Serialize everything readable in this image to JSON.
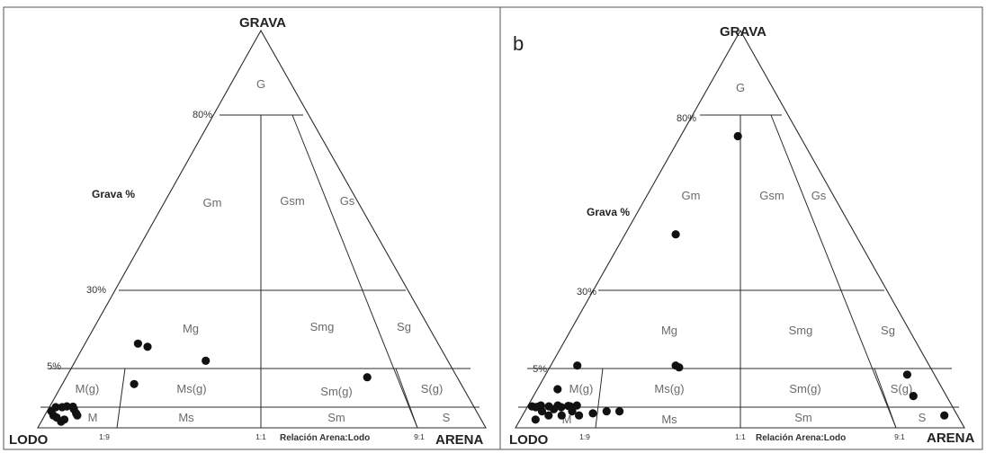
{
  "panels": [
    {
      "letter": "",
      "apex_top": "GRAVA",
      "corner_left": "LODO",
      "corner_right": "ARENA",
      "gravel_axis_label": "Grava %",
      "ratio_axis_label": "Relación Arena:Lodo",
      "gravel_levels": [
        "80%",
        "30%",
        "5%"
      ],
      "ratio_ticks": [
        "1:9",
        "1:1",
        "9:1"
      ],
      "zones": {
        "G": "G",
        "Gm": "Gm",
        "Gsm": "Gsm",
        "Gs": "Gs",
        "Mg": "Mg",
        "Smg": "Smg",
        "Sg": "Sg",
        "Mg_paren": "M(g)",
        "Msg": "Ms(g)",
        "Smg_paren": "Sm(g)",
        "Sg_paren": "S(g)",
        "M": "M",
        "Ms": "Ms",
        "Sm": "Sm",
        "S": "S"
      },
      "points": [
        {
          "gravel": 13,
          "ratio": 0.15
        },
        {
          "gravel": 12,
          "ratio": 0.18
        },
        {
          "gravel": 7.5,
          "ratio": 0.35
        },
        {
          "gravel": 3.2,
          "ratio": 0.18
        },
        {
          "gravel": 4.0,
          "ratio": 0.77
        },
        {
          "gravel": 0.4,
          "ratio": 0.01
        },
        {
          "gravel": 0.3,
          "ratio": 0.02
        },
        {
          "gravel": 0.5,
          "ratio": 0.03
        },
        {
          "gravel": 0.6,
          "ratio": 0.04
        },
        {
          "gravel": 0.2,
          "ratio": 0.05
        },
        {
          "gravel": 0.45,
          "ratio": 0.06
        },
        {
          "gravel": 0.35,
          "ratio": 0.07
        },
        {
          "gravel": 0.25,
          "ratio": 0.03
        },
        {
          "gravel": 0.55,
          "ratio": 0.055
        },
        {
          "gravel": 0.15,
          "ratio": 0.045
        },
        {
          "gravel": 0.3,
          "ratio": 0.075
        },
        {
          "gravel": 0.5,
          "ratio": 0.015
        }
      ]
    },
    {
      "letter": "b",
      "apex_top": "GRAVA",
      "corner_left": "LODO",
      "corner_right": "ARENA",
      "gravel_axis_label": "Grava %",
      "ratio_axis_label": "Relación Arena:Lodo",
      "gravel_levels": [
        "80%",
        "30%",
        "5%"
      ],
      "ratio_ticks": [
        "1:9",
        "1:1",
        "9:1"
      ],
      "zones": {
        "G": "G",
        "Gm": "Gm",
        "Gsm": "Gsm",
        "Gs": "Gs",
        "Mg": "Mg",
        "Smg": "Smg",
        "Sg": "Sg",
        "Mg_paren": "M(g)",
        "Msg": "Ms(g)",
        "Smg_paren": "Sm(g)",
        "Sg_paren": "S(g)",
        "M": "M",
        "Ms": "Ms",
        "Sm": "Sm",
        "S": "S"
      },
      "points": [
        {
          "gravel": 74,
          "ratio": 0.48
        },
        {
          "gravel": 46,
          "ratio": 0.22
        },
        {
          "gravel": 6.0,
          "ratio": 0.07
        },
        {
          "gravel": 6.0,
          "ratio": 0.33
        },
        {
          "gravel": 5.4,
          "ratio": 0.34
        },
        {
          "gravel": 2.6,
          "ratio": 0.05
        },
        {
          "gravel": 4.3,
          "ratio": 0.93
        },
        {
          "gravel": 1.8,
          "ratio": 0.92
        },
        {
          "gravel": 0.3,
          "ratio": 0.97
        },
        {
          "gravel": 0.3,
          "ratio": 0.13
        },
        {
          "gravel": 0.35,
          "ratio": 0.16
        },
        {
          "gravel": 0.4,
          "ratio": 0.19
        },
        {
          "gravel": 0.4,
          "ratio": 0.22
        },
        {
          "gravel": 0.6,
          "ratio": 0.01
        },
        {
          "gravel": 0.5,
          "ratio": 0.02
        },
        {
          "gravel": 0.7,
          "ratio": 0.03
        },
        {
          "gravel": 0.4,
          "ratio": 0.04
        },
        {
          "gravel": 0.6,
          "ratio": 0.05
        },
        {
          "gravel": 0.3,
          "ratio": 0.06
        },
        {
          "gravel": 0.7,
          "ratio": 0.07
        },
        {
          "gravel": 0.5,
          "ratio": 0.08
        },
        {
          "gravel": 0.3,
          "ratio": 0.09
        },
        {
          "gravel": 0.6,
          "ratio": 0.1
        },
        {
          "gravel": 0.4,
          "ratio": 0.11
        },
        {
          "gravel": 0.7,
          "ratio": 0.115
        },
        {
          "gravel": 0.55,
          "ratio": 0.025
        },
        {
          "gravel": 0.45,
          "ratio": 0.065
        },
        {
          "gravel": 0.65,
          "ratio": 0.095
        },
        {
          "gravel": 0.2,
          "ratio": 0.035
        }
      ]
    }
  ]
}
